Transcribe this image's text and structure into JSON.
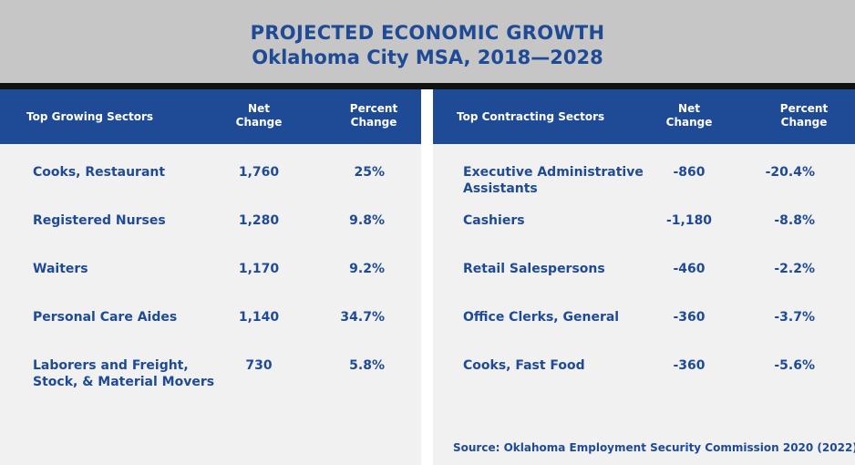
{
  "header": {
    "title": "PROJECTED ECONOMIC GROWTH",
    "subtitle": "Oklahoma City MSA, 2018—2028"
  },
  "growing": {
    "col_sector": "Top Growing Sectors",
    "col_net_1": "Net",
    "col_net_2": "Change",
    "col_pct_1": "Percent",
    "col_pct_2": "Change",
    "rows": [
      {
        "name": "Cooks, Restaurant",
        "net": "1,760",
        "pct": "25%"
      },
      {
        "name": "Registered Nurses",
        "net": "1,280",
        "pct": "9.8%"
      },
      {
        "name": "Waiters",
        "net": "1,170",
        "pct": "9.2%"
      },
      {
        "name": "Personal Care Aides",
        "net": "1,140",
        "pct": "34.7%"
      },
      {
        "name": "Laborers and Freight, Stock, & Material Movers",
        "net": "730",
        "pct": "5.8%"
      }
    ]
  },
  "contracting": {
    "col_sector": "Top Contracting Sectors",
    "col_net_1": "Net",
    "col_net_2": "Change",
    "col_pct_1": "Percent",
    "col_pct_2": "Change",
    "rows": [
      {
        "name": "Executive Administrative Assistants",
        "net": "-860",
        "pct": "-20.4%"
      },
      {
        "name": "Cashiers",
        "net": "-1,180",
        "pct": "-8.8%"
      },
      {
        "name": "Retail Salespersons",
        "net": "-460",
        "pct": "-2.2%"
      },
      {
        "name": "Office Clerks, General",
        "net": "-360",
        "pct": "-3.7%"
      },
      {
        "name": "Cooks, Fast Food",
        "net": "-360",
        "pct": "-5.6%"
      }
    ]
  },
  "source": "Source: Oklahoma Employment Security Commission 2020 (2022)",
  "colors": {
    "accent": "#1f4a96",
    "header_bg": "#c6c6c6",
    "panel_bg": "#f1f1f1",
    "bar": "#111111"
  }
}
